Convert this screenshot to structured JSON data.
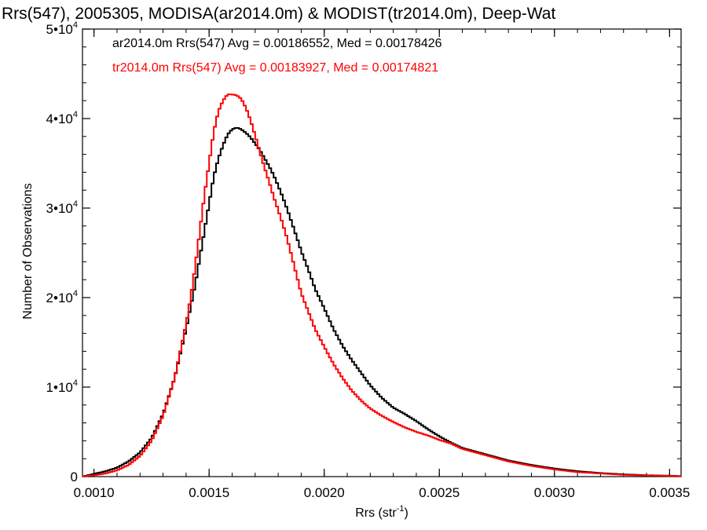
{
  "chart_data": {
    "type": "line",
    "title": "Rrs(547), 2005305, MODISA(ar2014.0m) & MODIST(tr2014.0m), Deep-Wat",
    "xlabel": "Rrs (str",
    "xlabel_sup": "-1",
    "xlabel_close": ")",
    "ylabel": "Number of Observations",
    "xlim": [
      0.00095,
      0.00355
    ],
    "ylim": [
      0,
      50000
    ],
    "x_ticks": [
      {
        "value": 0.001,
        "label": "0.0010"
      },
      {
        "value": 0.0015,
        "label": "0.0015"
      },
      {
        "value": 0.002,
        "label": "0.0020"
      },
      {
        "value": 0.0025,
        "label": "0.0025"
      },
      {
        "value": 0.003,
        "label": "0.0030"
      },
      {
        "value": 0.0035,
        "label": "0.0035"
      }
    ],
    "y_ticks": [
      {
        "value": 0,
        "label": "0",
        "sup": ""
      },
      {
        "value": 10000,
        "label": "1•10",
        "sup": "4"
      },
      {
        "value": 20000,
        "label": "2•10",
        "sup": "4"
      },
      {
        "value": 30000,
        "label": "3•10",
        "sup": "4"
      },
      {
        "value": 40000,
        "label": "4•10",
        "sup": "4"
      },
      {
        "value": 50000,
        "label": "5•10",
        "sup": "4"
      }
    ],
    "grid": false,
    "legend_position": "top-left",
    "series": [
      {
        "name": "ar2014.0m",
        "label": "ar2014.0m Rrs(547) Avg = 0.00186552, Med = 0.00178426",
        "color": "#000000",
        "x": [
          0.00095,
          0.001,
          0.00105,
          0.0011,
          0.00115,
          0.0012,
          0.00125,
          0.0013,
          0.00135,
          0.0014,
          0.00142,
          0.00144,
          0.00146,
          0.00148,
          0.0015,
          0.00152,
          0.00154,
          0.00156,
          0.00158,
          0.0016,
          0.00162,
          0.00164,
          0.00166,
          0.00168,
          0.0017,
          0.00172,
          0.00174,
          0.00176,
          0.00178,
          0.0018,
          0.00182,
          0.00184,
          0.00186,
          0.00188,
          0.0019,
          0.00193,
          0.00196,
          0.002,
          0.00204,
          0.00208,
          0.00212,
          0.00216,
          0.0022,
          0.00225,
          0.0023,
          0.00235,
          0.0024,
          0.00245,
          0.0025,
          0.00255,
          0.0026,
          0.0027,
          0.0028,
          0.0029,
          0.003,
          0.0031,
          0.0032,
          0.0033,
          0.0034,
          0.0035,
          0.00355
        ],
        "y": [
          0,
          300,
          600,
          1000,
          1700,
          2700,
          4300,
          7000,
          11000,
          16500,
          19000,
          21500,
          24500,
          27500,
          30500,
          33500,
          35500,
          37000,
          38200,
          38800,
          39000,
          38800,
          38400,
          37900,
          37200,
          36500,
          35600,
          34700,
          33700,
          32500,
          31200,
          29800,
          28300,
          26800,
          25200,
          23200,
          21000,
          18800,
          16500,
          14600,
          13000,
          11600,
          10200,
          8800,
          7700,
          7000,
          6200,
          5300,
          4500,
          3800,
          3200,
          2500,
          1800,
          1300,
          900,
          600,
          400,
          250,
          150,
          100,
          50
        ]
      },
      {
        "name": "tr2014.0m",
        "label": "tr2014.0m Rrs(547) Avg = 0.00183927, Med = 0.00174821",
        "color": "#ff0000",
        "x": [
          0.00095,
          0.001,
          0.00105,
          0.0011,
          0.00115,
          0.0012,
          0.00125,
          0.0013,
          0.00135,
          0.0014,
          0.00142,
          0.00144,
          0.00146,
          0.00148,
          0.0015,
          0.00152,
          0.00154,
          0.00156,
          0.00158,
          0.0016,
          0.00162,
          0.00164,
          0.00166,
          0.00168,
          0.0017,
          0.00172,
          0.00174,
          0.00176,
          0.00178,
          0.0018,
          0.00182,
          0.00184,
          0.00186,
          0.00188,
          0.0019,
          0.00193,
          0.00196,
          0.002,
          0.00204,
          0.00208,
          0.00212,
          0.00216,
          0.0022,
          0.00225,
          0.0023,
          0.00235,
          0.0024,
          0.00245,
          0.0025,
          0.00255,
          0.0026,
          0.0027,
          0.0028,
          0.0029,
          0.003,
          0.0031,
          0.0032,
          0.0033,
          0.0034,
          0.0035,
          0.00355
        ],
        "y": [
          0,
          150,
          350,
          700,
          1300,
          2300,
          4000,
          6800,
          11000,
          17000,
          20000,
          23500,
          27500,
          31500,
          35000,
          38500,
          40800,
          42000,
          42700,
          42700,
          42600,
          42200,
          41200,
          39800,
          38100,
          36300,
          34600,
          33000,
          31300,
          29800,
          28200,
          26500,
          24500,
          22500,
          20500,
          18500,
          16500,
          14500,
          12600,
          11000,
          9600,
          8500,
          7600,
          6800,
          6100,
          5500,
          5000,
          4600,
          4100,
          3700,
          3100,
          2400,
          1700,
          1200,
          800,
          500,
          350,
          200,
          120,
          80,
          40
        ]
      }
    ]
  }
}
